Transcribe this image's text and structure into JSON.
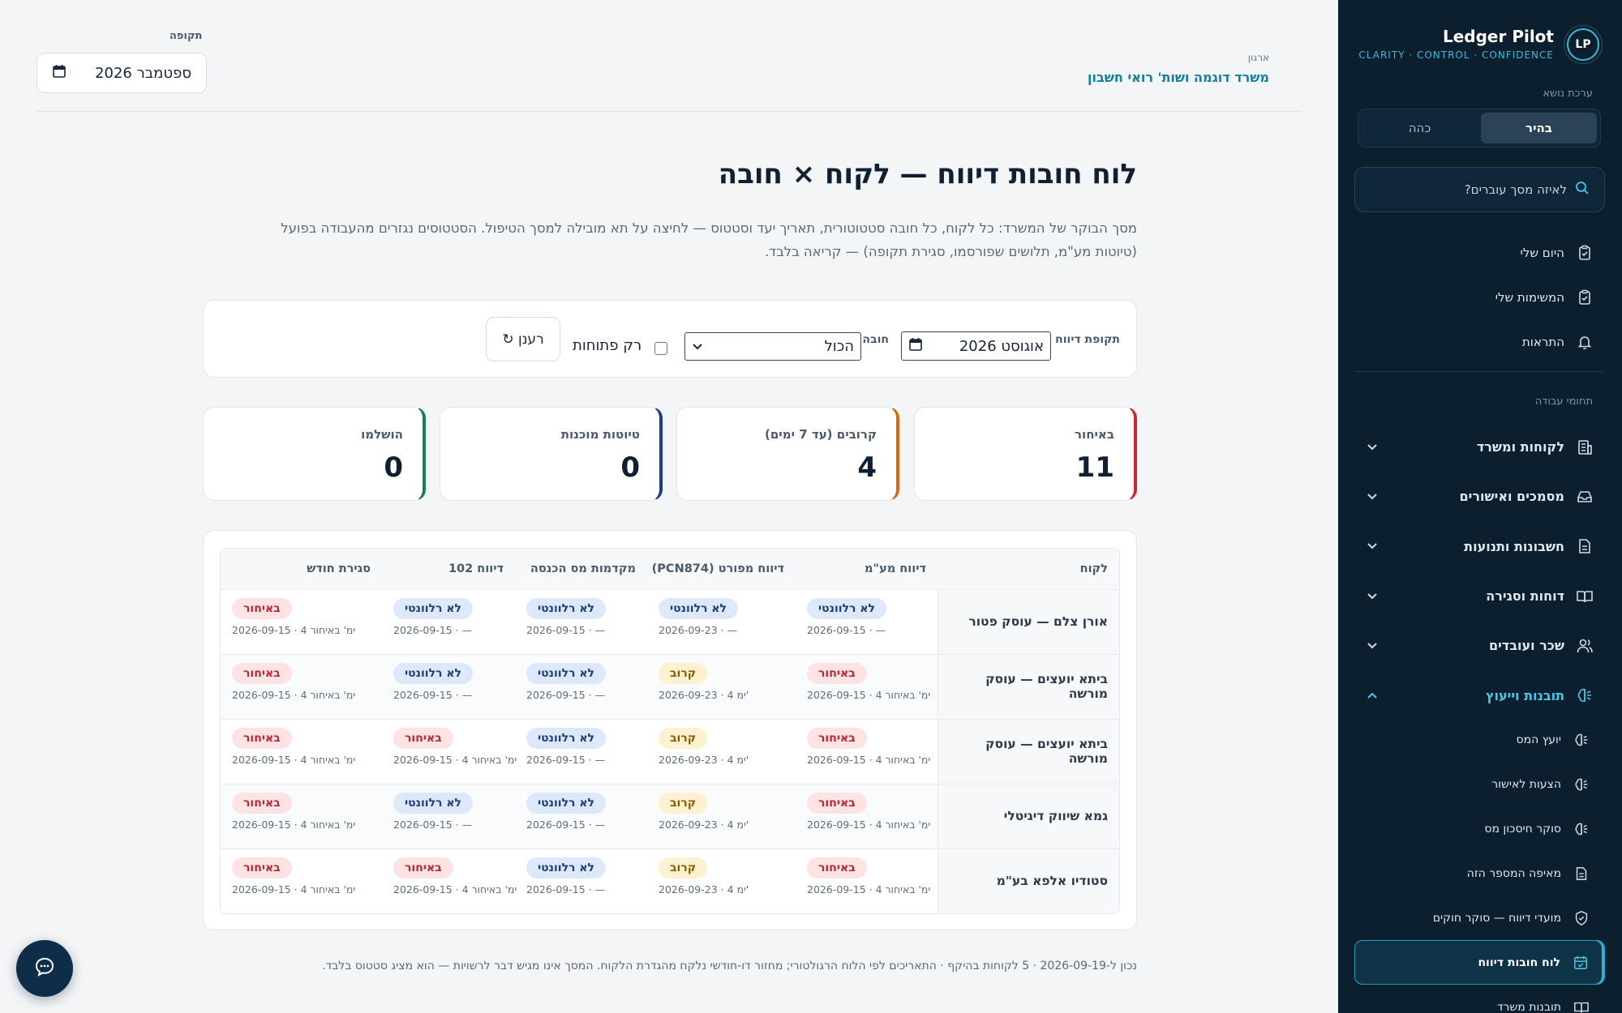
{
  "sidebar": {
    "brand_name": "Ledger Pilot",
    "brand_tagline": "CLARITY · CONTROL · CONFIDENCE",
    "logo_text": "LP",
    "theme_label": "ערכת נושא",
    "theme_light": "בהיר",
    "theme_dark": "כהה",
    "search_placeholder": "לאיזה מסך עוברים?",
    "top_items": [
      "היום שלי",
      "המשימות שלי",
      "התראות"
    ],
    "section_label": "תחומי עבודה",
    "main_items": [
      "לקוחות ומשרד",
      "מסמכים ואישורים",
      "חשבונות ותנועות",
      "דוחות וסגירה",
      "שכר ועובדים",
      "תובנות וייעוץ"
    ],
    "sub_items": [
      "יועץ המס",
      "הצעות לאישור",
      "סוקר חיסכון מס",
      "מאיפה המספר הזה",
      "מועדי דיווח — סוקר חוקים",
      "לוח חובות דיווח",
      "תובנות משרד"
    ]
  },
  "header": {
    "org_label": "ארגון",
    "org_name": "משרד דוגמה ושות' רואי חשבון",
    "period_label": "תקופה",
    "period_value": "ספטמבר 2026"
  },
  "page": {
    "title": "לוח חובות דיווח — לקוח × חובה",
    "description": "מסך הבוקר של המשרד: כל לקוח, כל חובה סטטוטורית, תאריך יעד וסטטוס — לחיצה על תא מובילה למסך הטיפול. הסטטוסים נגזרים מהעבודה בפועל (טיוטות מע\"מ, תלושים שפורסמו, סגירת תקופה) — קריאה בלבד."
  },
  "filters": {
    "period_label": "תקופת דיווח",
    "period_value": "אוגוסט 2026",
    "obligation_label": "חובה",
    "obligation_value": "הכול",
    "open_only_label": "רק פתוחות",
    "refresh_label": "רענן ↻"
  },
  "kpis": [
    {
      "label": "באיחור",
      "value": "11",
      "color": "#c62a2f"
    },
    {
      "label": "קרובים (עד 7 ימים)",
      "value": "4",
      "color": "#d36b12"
    },
    {
      "label": "טיוטות מוכנות",
      "value": "0",
      "color": "#1f3a8a"
    },
    {
      "label": "הושלמו",
      "value": "0",
      "color": "#12805a"
    }
  ],
  "table": {
    "headers": [
      "לקוח",
      "דיווח מע\"מ",
      "דיווח מפורט (PCN874)",
      "מקדמות מס הכנסה",
      "דיווח 102",
      "סגירת חודש"
    ],
    "rows": [
      {
        "client": "אורן צלם — עוסק פטור",
        "cells": [
          {
            "badge": "לא רלוונטי",
            "kind": "na",
            "meta": "2026-09-15 · —"
          },
          {
            "badge": "לא רלוונטי",
            "kind": "na",
            "meta": "2026-09-23 · —"
          },
          {
            "badge": "לא רלוונטי",
            "kind": "na",
            "meta": "2026-09-15 · —"
          },
          {
            "badge": "לא רלוונטי",
            "kind": "na",
            "meta": "2026-09-15 · —"
          },
          {
            "badge": "באיחור",
            "kind": "late",
            "meta": "2026-09-15 · 4 ימ' באיחור"
          }
        ]
      },
      {
        "client": "ביתא יועצים — עוסק מורשה",
        "cells": [
          {
            "badge": "באיחור",
            "kind": "late",
            "meta": "2026-09-15 · 4 ימ' באיחור"
          },
          {
            "badge": "קרוב",
            "kind": "near",
            "meta": "2026-09-23 · 4 ימ'"
          },
          {
            "badge": "לא רלוונטי",
            "kind": "na",
            "meta": "2026-09-15 · —"
          },
          {
            "badge": "לא רלוונטי",
            "kind": "na",
            "meta": "2026-09-15 · —"
          },
          {
            "badge": "באיחור",
            "kind": "late",
            "meta": "2026-09-15 · 4 ימ' באיחור"
          }
        ]
      },
      {
        "client": "ביתא יועצים — עוסק מורשה",
        "cells": [
          {
            "badge": "באיחור",
            "kind": "late",
            "meta": "2026-09-15 · 4 ימ' באיחור"
          },
          {
            "badge": "קרוב",
            "kind": "near",
            "meta": "2026-09-23 · 4 ימ'"
          },
          {
            "badge": "לא רלוונטי",
            "kind": "na",
            "meta": "2026-09-15 · —"
          },
          {
            "badge": "באיחור",
            "kind": "late",
            "meta": "2026-09-15 · 4 ימ' באיחור"
          },
          {
            "badge": "באיחור",
            "kind": "late",
            "meta": "2026-09-15 · 4 ימ' באיחור"
          }
        ]
      },
      {
        "client": "גמא שיווק דיגיטלי",
        "cells": [
          {
            "badge": "באיחור",
            "kind": "late",
            "meta": "2026-09-15 · 4 ימ' באיחור"
          },
          {
            "badge": "קרוב",
            "kind": "near",
            "meta": "2026-09-23 · 4 ימ'"
          },
          {
            "badge": "לא רלוונטי",
            "kind": "na",
            "meta": "2026-09-15 · —"
          },
          {
            "badge": "לא רלוונטי",
            "kind": "na",
            "meta": "2026-09-15 · —"
          },
          {
            "badge": "באיחור",
            "kind": "late",
            "meta": "2026-09-15 · 4 ימ' באיחור"
          }
        ]
      },
      {
        "client": "סטודיו אלפא בע\"מ",
        "cells": [
          {
            "badge": "באיחור",
            "kind": "late",
            "meta": "2026-09-15 · 4 ימ' באיחור"
          },
          {
            "badge": "קרוב",
            "kind": "near",
            "meta": "2026-09-23 · 4 ימ'"
          },
          {
            "badge": "לא רלוונטי",
            "kind": "na",
            "meta": "2026-09-15 · —"
          },
          {
            "badge": "באיחור",
            "kind": "late",
            "meta": "2026-09-15 · 4 ימ' באיחור"
          },
          {
            "badge": "באיחור",
            "kind": "late",
            "meta": "2026-09-15 · 4 ימ' באיחור"
          }
        ]
      }
    ]
  },
  "footnote": "נכון ל-2026-09-19 · 5 לקוחות בהיקף · התאריכים לפי הלוח הרגולטורי; מחזור דו-חודשי נלקח מהגדרת הלקוח. המסך אינו מגיש דבר לרשויות — הוא מציג סטטוס בלבד."
}
